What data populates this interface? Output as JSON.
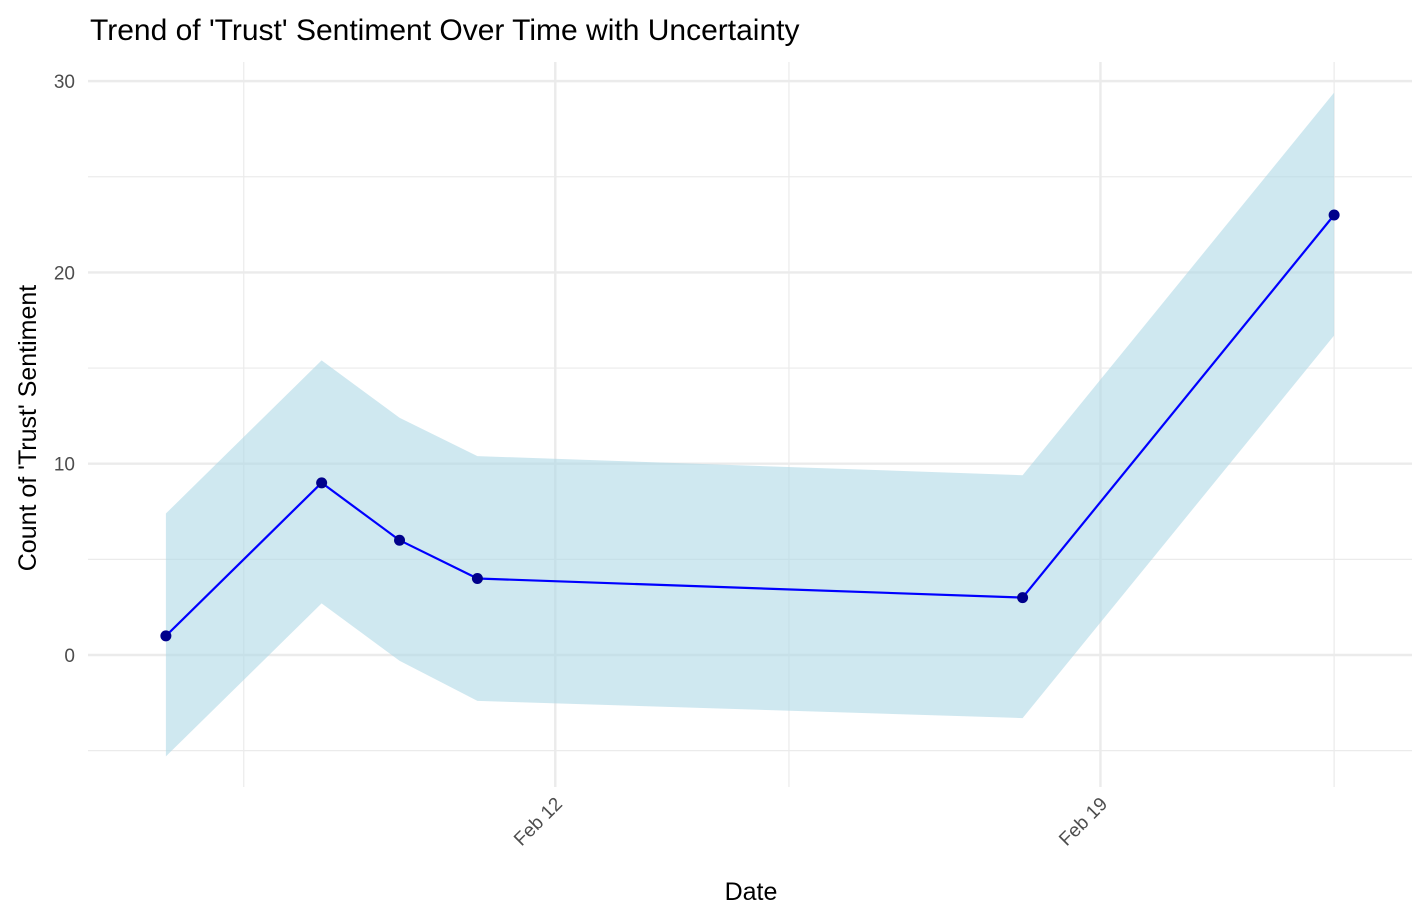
{
  "chart_data": {
    "type": "line",
    "title": "Trend of 'Trust' Sentiment Over Time with Uncertainty",
    "xlabel": "Date",
    "ylabel": "Count of 'Trust' Sentiment",
    "x_type": "date",
    "xlim": [
      "2024-02-06",
      "2024-02-23"
    ],
    "ylim": [
      -6.9,
      31
    ],
    "x_ticks": [
      {
        "date": "2024-02-12",
        "label": "Feb 12"
      },
      {
        "date": "2024-02-19",
        "label": "Feb 19"
      }
    ],
    "x_minor_ticks": [
      "2024-02-08",
      "2024-02-15",
      "2024-02-22"
    ],
    "y_ticks": [
      0,
      10,
      20,
      30
    ],
    "y_minor_ticks": [
      -5,
      5,
      15,
      25
    ],
    "grid": true,
    "series": [
      {
        "x": [
          "2024-02-07",
          "2024-02-09",
          "2024-02-10",
          "2024-02-11",
          "2024-02-18",
          "2024-02-22"
        ],
        "values": [
          1,
          9,
          6,
          4,
          3,
          23
        ],
        "lower": [
          -5.3,
          2.7,
          -0.3,
          -2.4,
          -3.3,
          16.7
        ],
        "upper": [
          7.4,
          15.4,
          12.4,
          10.4,
          9.4,
          29.4
        ]
      }
    ],
    "colors": {
      "line": "#0000ff",
      "points": "#00008b",
      "ribbon": "#add8e6",
      "grid": "#ebebeb"
    }
  }
}
